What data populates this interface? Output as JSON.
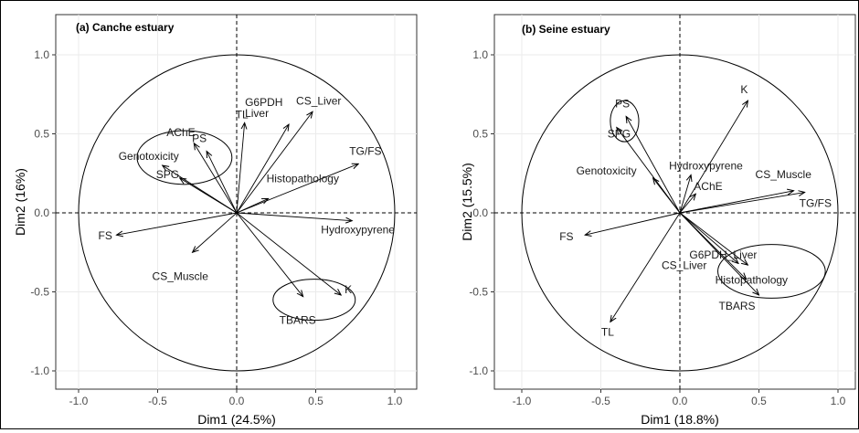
{
  "chart_data": [
    {
      "type": "scatter",
      "subtype": "pca-correlation-circle",
      "title": "(a) Canche estuary",
      "xlabel": "Dim1 (24.5%)",
      "ylabel": "Dim2 (16%)",
      "xlim": [
        -1.1,
        1.1
      ],
      "ylim": [
        -1.1,
        1.1
      ],
      "xticks": [
        "-1.0",
        "-0.5",
        "0.0",
        "0.5",
        "1.0"
      ],
      "yticks": [
        "-1.0",
        "-0.5",
        "0.0",
        "0.5",
        "1.0"
      ],
      "grid": true,
      "variables": [
        {
          "name": "TL",
          "x": 0.05,
          "y": 0.57
        },
        {
          "name": "G6PDH\nLiver",
          "x": 0.33,
          "y": 0.56
        },
        {
          "name": "CS_Liver",
          "x": 0.48,
          "y": 0.64
        },
        {
          "name": "AChE",
          "x": -0.27,
          "y": 0.44
        },
        {
          "name": "PS",
          "x": -0.19,
          "y": 0.39
        },
        {
          "name": "Genotoxicity",
          "x": -0.47,
          "y": 0.3
        },
        {
          "name": "SPG",
          "x": -0.36,
          "y": 0.22
        },
        {
          "name": "TG/FS",
          "x": 0.77,
          "y": 0.31
        },
        {
          "name": "Histopathology",
          "x": 0.2,
          "y": 0.09
        },
        {
          "name": "Hydroxypyrene",
          "x": 0.73,
          "y": -0.05
        },
        {
          "name": "FS",
          "x": -0.76,
          "y": -0.14
        },
        {
          "name": "CS_Muscle",
          "x": -0.28,
          "y": -0.25
        },
        {
          "name": "TBARS",
          "x": 0.42,
          "y": -0.53
        },
        {
          "name": "K",
          "x": 0.66,
          "y": -0.52
        }
      ],
      "ellipses": [
        {
          "cx": -0.33,
          "cy": 0.35,
          "rx": 0.3,
          "ry": 0.17
        },
        {
          "cx": 0.49,
          "cy": -0.55,
          "rx": 0.26,
          "ry": 0.13
        }
      ]
    },
    {
      "type": "scatter",
      "subtype": "pca-correlation-circle",
      "title": "(b) Seine estuary",
      "xlabel": "Dim1 (18.8%)",
      "ylabel": "Dim2 (15.5%)",
      "xlim": [
        -1.1,
        1.1
      ],
      "ylim": [
        -1.1,
        1.1
      ],
      "xticks": [
        "-1.0",
        "-0.5",
        "0.0",
        "0.5",
        "1.0"
      ],
      "yticks": [
        "-1.0",
        "-0.5",
        "0.0",
        "0.5",
        "1.0"
      ],
      "grid": true,
      "variables": [
        {
          "name": "K",
          "x": 0.43,
          "y": 0.71
        },
        {
          "name": "PS",
          "x": -0.34,
          "y": 0.61
        },
        {
          "name": "SPG",
          "x": -0.4,
          "y": 0.54
        },
        {
          "name": "Hydroxypyrene",
          "x": 0.07,
          "y": 0.24
        },
        {
          "name": "Genotoxicity",
          "x": -0.17,
          "y": 0.22
        },
        {
          "name": "AChE",
          "x": 0.1,
          "y": 0.12
        },
        {
          "name": "CS_Muscle",
          "x": 0.72,
          "y": 0.14
        },
        {
          "name": "TG/FS",
          "x": 0.79,
          "y": 0.13
        },
        {
          "name": "FS",
          "x": -0.6,
          "y": -0.14
        },
        {
          "name": "G6PDH_Liver",
          "x": 0.43,
          "y": -0.33
        },
        {
          "name": "CS_Liver",
          "x": 0.37,
          "y": -0.32
        },
        {
          "name": "Histopathology",
          "x": 0.42,
          "y": -0.42
        },
        {
          "name": "TBARS",
          "x": 0.5,
          "y": -0.52
        },
        {
          "name": "TL",
          "x": -0.44,
          "y": -0.69
        }
      ],
      "ellipses": [
        {
          "cx": -0.35,
          "cy": 0.58,
          "rx": 0.09,
          "ry": 0.13
        },
        {
          "cx": 0.58,
          "cy": -0.37,
          "rx": 0.34,
          "ry": 0.17
        }
      ]
    }
  ]
}
